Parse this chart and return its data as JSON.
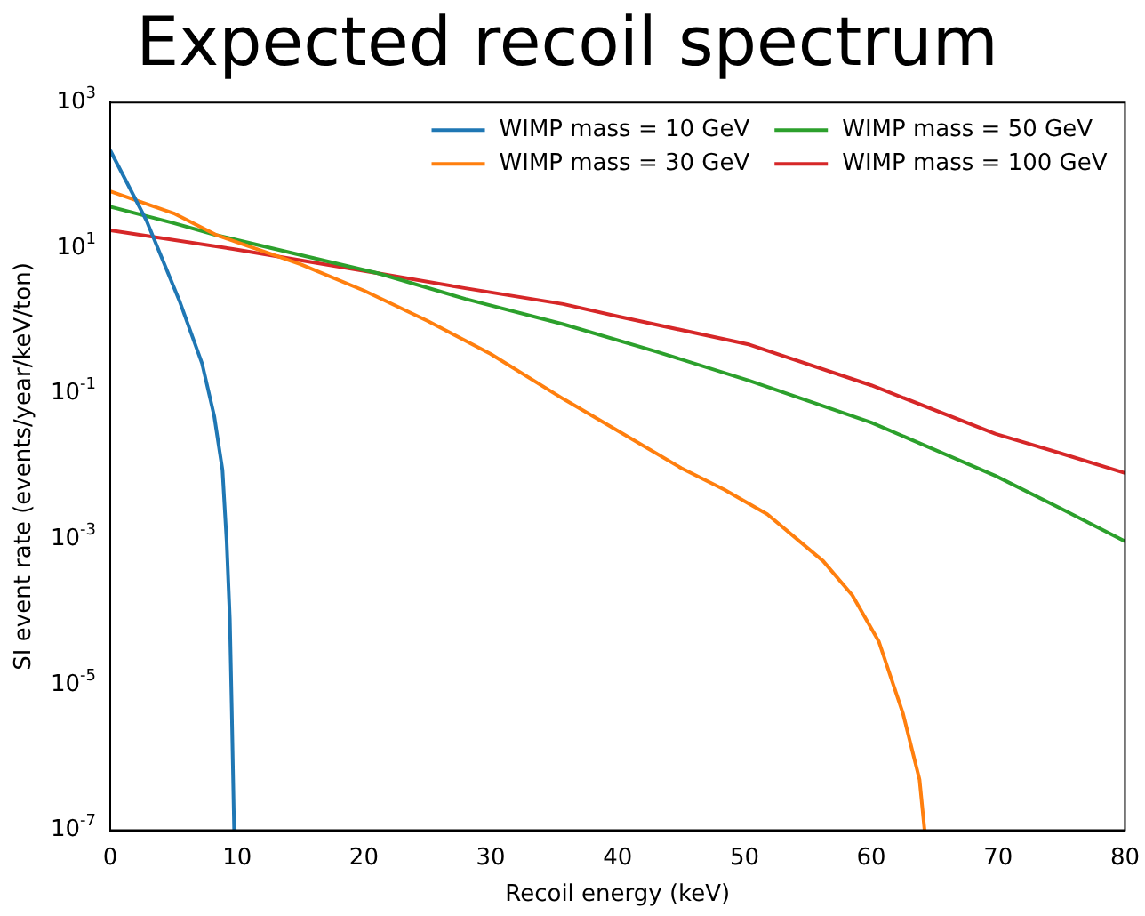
{
  "chart_data": {
    "type": "line",
    "title": "Expected recoil spectrum",
    "xlabel": "Recoil energy (keV)",
    "ylabel": "SI event rate (events/year/keV/ton)",
    "log": "y",
    "grid": false,
    "legend": "top right",
    "xlim": [
      0,
      80
    ],
    "xticks": [
      0,
      10,
      20,
      30,
      40,
      50,
      60,
      70,
      80
    ],
    "ylim": [
      1e-07,
      1000
    ],
    "yticks": [
      {
        "value": 1e-07,
        "label": "10$^{-7}$"
      },
      {
        "value": 1e-05,
        "label": "10$^{-5}$"
      },
      {
        "value": 0.001,
        "label": "10$^{-3}$"
      },
      {
        "value": 0.1,
        "label": "10$^{-1}$"
      },
      {
        "value": 10,
        "label": "10$^{1}$"
      },
      {
        "value": 1000,
        "label": "10$^{3}$"
      }
    ],
    "series": [
      {
        "name": "WIMP mass = 10 GeV",
        "color": "#1f77b4",
        "x": [
          0,
          2.85,
          5.5,
          7.24,
          8.2,
          8.85,
          9.18,
          9.43,
          9.58,
          9.77
        ],
        "values": [
          220,
          24,
          1.8,
          0.26,
          0.049,
          0.0089,
          0.00093,
          8.1e-05,
          4.8e-06,
          1e-07
        ]
      },
      {
        "name": "WIMP mass = 30 GeV",
        "color": "#ff7f0e",
        "x": [
          0,
          5,
          8.4,
          10,
          15,
          20,
          25,
          30,
          35.7,
          40,
          45,
          48.4,
          51.8,
          56.2,
          58.5,
          60.6,
          62.5,
          63.8,
          64.2
        ],
        "values": [
          60,
          30,
          15,
          12,
          6,
          2.6,
          1,
          0.35,
          0.085,
          0.031,
          0.0095,
          0.0048,
          0.0022,
          0.0005,
          0.00017,
          3.9e-05,
          4e-06,
          5e-07,
          1e-07
        ]
      },
      {
        "name": "WIMP mass = 50 GeV",
        "color": "#2ca02c",
        "x": [
          0,
          5,
          8.4,
          15,
          21.1,
          28,
          35.7,
          43,
          50.4,
          60,
          69.8,
          75,
          80
        ],
        "values": [
          37,
          22,
          15,
          8,
          4.5,
          2,
          0.9,
          0.38,
          0.15,
          0.04,
          0.0074,
          0.0026,
          0.00093
        ]
      },
      {
        "name": "WIMP mass = 100 GeV",
        "color": "#d62728",
        "x": [
          0,
          10,
          21.1,
          28,
          35.7,
          40,
          50.4,
          60,
          69.8,
          75,
          80
        ],
        "values": [
          17.5,
          9.5,
          4.5,
          2.8,
          1.7,
          1.15,
          0.47,
          0.13,
          0.028,
          0.015,
          0.0081
        ]
      }
    ]
  }
}
